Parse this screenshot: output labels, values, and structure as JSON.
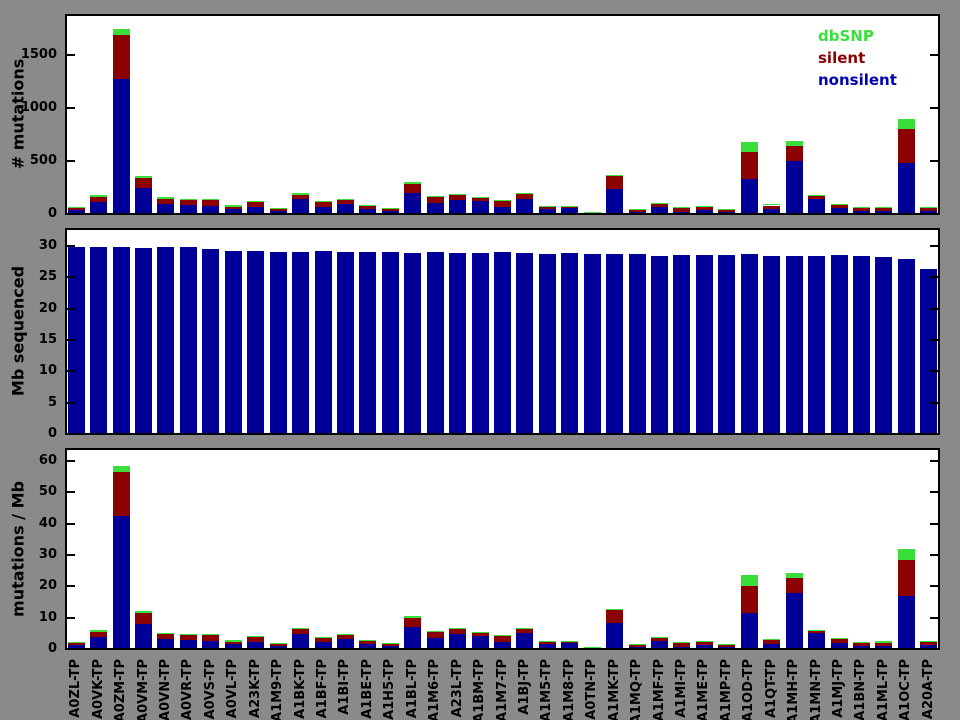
{
  "figure": {
    "background_color": "#8A8A8A",
    "plot_background_color": "#FFFFFF",
    "legend": {
      "position": "top-right-of-first-panel",
      "items": [
        {
          "label": "dbSNP",
          "color": "#3ADF3A"
        },
        {
          "label": "silent",
          "color": "#8B0000"
        },
        {
          "label": "nonsilent",
          "color": "#0000B3"
        }
      ]
    }
  },
  "chart_data": [
    {
      "type": "bar",
      "stacked": true,
      "ylabel": "# mutations",
      "xlabel": "",
      "ylim": [
        0,
        1900
      ],
      "yticks": [
        0,
        500,
        1000,
        1500
      ],
      "grid": false,
      "legend_position": "top-right",
      "categories": [
        "A0ZL-TP",
        "A0VK-TP",
        "A0ZM-TP",
        "A0VM-TP",
        "A0VN-TP",
        "A0VR-TP",
        "A0VS-TP",
        "A0VL-TP",
        "A23K-TP",
        "A1M9-TP",
        "A1BK-TP",
        "A1BF-TP",
        "A1BI-TP",
        "A1BE-TP",
        "A1H5-TP",
        "A1BL-TP",
        "A1M6-TP",
        "A23L-TP",
        "A1BM-TP",
        "A1M7-TP",
        "A1BJ-TP",
        "A1M5-TP",
        "A1M8-TP",
        "A0TN-TP",
        "A1MK-TP",
        "A1MQ-TP",
        "A1MF-TP",
        "A1MI-TP",
        "A1ME-TP",
        "A1MP-TP",
        "A1OD-TP",
        "A1QT-TP",
        "A1MH-TP",
        "A1MN-TP",
        "A1MJ-TP",
        "A1BN-TP",
        "A1ML-TP",
        "A1OC-TP",
        "A20A-TP"
      ],
      "series": [
        {
          "name": "nonsilent",
          "color": "#000099",
          "values": [
            48,
            119,
            1282,
            251,
            103,
            97,
            87,
            54,
            80,
            42,
            151,
            80,
            103,
            58,
            39,
            209,
            112,
            145,
            129,
            80,
            155,
            58,
            64,
            10,
            248,
            32,
            80,
            32,
            48,
            25,
            338,
            58,
            515,
            151,
            64,
            39,
            39,
            489,
            39
          ]
        },
        {
          "name": "silent",
          "color": "#8B0000",
          "values": [
            23,
            48,
            416,
            97,
            48,
            45,
            55,
            26,
            39,
            22,
            42,
            42,
            42,
            29,
            19,
            87,
            55,
            48,
            32,
            55,
            44,
            22,
            16,
            15,
            122,
            22,
            32,
            39,
            32,
            23,
            258,
            32,
            139,
            26,
            39,
            32,
            25,
            323,
            32
          ]
        },
        {
          "name": "dbSNP",
          "color": "#3ADF3A",
          "values": [
            8,
            26,
            62,
            22,
            16,
            13,
            8,
            17,
            16,
            6,
            16,
            6,
            10,
            6,
            6,
            16,
            10,
            10,
            10,
            6,
            10,
            6,
            3,
            3,
            10,
            3,
            6,
            3,
            6,
            7,
            96,
            10,
            48,
            8,
            3,
            4,
            16,
            97,
            3
          ]
        }
      ]
    },
    {
      "type": "bar",
      "stacked": false,
      "ylabel": "Mb sequenced",
      "xlabel": "",
      "ylim": [
        0,
        33
      ],
      "yticks": [
        0,
        5,
        10,
        15,
        20,
        25,
        30
      ],
      "grid": false,
      "categories": [
        "A0ZL-TP",
        "A0VK-TP",
        "A0ZM-TP",
        "A0VM-TP",
        "A0VN-TP",
        "A0VR-TP",
        "A0VS-TP",
        "A0VL-TP",
        "A23K-TP",
        "A1M9-TP",
        "A1BK-TP",
        "A1BF-TP",
        "A1BI-TP",
        "A1BE-TP",
        "A1H5-TP",
        "A1BL-TP",
        "A1M6-TP",
        "A23L-TP",
        "A1BM-TP",
        "A1M7-TP",
        "A1BJ-TP",
        "A1M5-TP",
        "A1M8-TP",
        "A0TN-TP",
        "A1MK-TP",
        "A1MQ-TP",
        "A1MF-TP",
        "A1MI-TP",
        "A1ME-TP",
        "A1MP-TP",
        "A1OD-TP",
        "A1QT-TP",
        "A1MH-TP",
        "A1MN-TP",
        "A1MJ-TP",
        "A1BN-TP",
        "A1ML-TP",
        "A1OC-TP",
        "A20A-TP"
      ],
      "series": [
        {
          "name": "Mb sequenced",
          "color": "#000099",
          "values": [
            29.9,
            29.9,
            29.9,
            29.8,
            29.9,
            29.9,
            29.7,
            29.3,
            29.4,
            29.2,
            29.2,
            29.3,
            29.1,
            29.2,
            29.1,
            29.0,
            29.1,
            29.0,
            29.0,
            29.1,
            29.0,
            28.9,
            29.0,
            28.9,
            28.9,
            28.8,
            28.6,
            28.7,
            28.7,
            28.7,
            28.9,
            28.5,
            28.5,
            28.6,
            28.7,
            28.5,
            28.4,
            28.1,
            26.4
          ]
        }
      ]
    },
    {
      "type": "bar",
      "stacked": true,
      "ylabel": "mutations / Mb",
      "xlabel": "",
      "ylim": [
        0,
        64.5
      ],
      "yticks": [
        0,
        10,
        20,
        30,
        40,
        50,
        60
      ],
      "grid": false,
      "x_tick_labels_shown": true,
      "categories": [
        "A0ZL-TP",
        "A0VK-TP",
        "A0ZM-TP",
        "A0VM-TP",
        "A0VN-TP",
        "A0VR-TP",
        "A0VS-TP",
        "A0VL-TP",
        "A23K-TP",
        "A1M9-TP",
        "A1BK-TP",
        "A1BF-TP",
        "A1BI-TP",
        "A1BE-TP",
        "A1H5-TP",
        "A1BL-TP",
        "A1M6-TP",
        "A23L-TP",
        "A1BM-TP",
        "A1M7-TP",
        "A1BJ-TP",
        "A1M5-TP",
        "A1M8-TP",
        "A0TN-TP",
        "A1MK-TP",
        "A1MQ-TP",
        "A1MF-TP",
        "A1MI-TP",
        "A1ME-TP",
        "A1MP-TP",
        "A1OD-TP",
        "A1QT-TP",
        "A1MH-TP",
        "A1MN-TP",
        "A1MJ-TP",
        "A1BN-TP",
        "A1ML-TP",
        "A1OC-TP",
        "A20A-TP"
      ],
      "series": [
        {
          "name": "nonsilent",
          "color": "#000099",
          "values": [
            1.6,
            4.0,
            42.9,
            8.4,
            3.4,
            3.2,
            2.9,
            1.8,
            2.7,
            1.4,
            5.2,
            2.7,
            3.5,
            2.0,
            1.3,
            7.2,
            3.8,
            5.0,
            4.4,
            2.7,
            5.3,
            2.0,
            2.2,
            0.3,
            8.6,
            1.1,
            2.8,
            1.1,
            1.7,
            0.9,
            11.7,
            2.0,
            18.1,
            5.3,
            2.2,
            1.4,
            1.4,
            17.4,
            1.5
          ]
        },
        {
          "name": "silent",
          "color": "#8B0000",
          "values": [
            0.8,
            1.6,
            13.9,
            3.3,
            1.6,
            1.5,
            1.9,
            0.9,
            1.3,
            0.8,
            1.4,
            1.4,
            1.4,
            1.0,
            0.7,
            3.0,
            1.9,
            1.7,
            1.1,
            1.9,
            1.5,
            0.8,
            0.6,
            0.5,
            4.2,
            0.8,
            1.1,
            1.4,
            1.1,
            0.8,
            8.9,
            1.1,
            4.9,
            0.9,
            1.4,
            1.1,
            0.9,
            11.5,
            1.2
          ]
        },
        {
          "name": "dbSNP",
          "color": "#3ADF3A",
          "values": [
            0.3,
            0.9,
            2.1,
            0.7,
            0.5,
            0.4,
            0.3,
            0.6,
            0.5,
            0.2,
            0.5,
            0.2,
            0.3,
            0.2,
            0.2,
            0.6,
            0.3,
            0.3,
            0.3,
            0.2,
            0.3,
            0.2,
            0.1,
            0.1,
            0.3,
            0.1,
            0.2,
            0.1,
            0.2,
            0.2,
            3.3,
            0.4,
            1.7,
            0.3,
            0.1,
            0.1,
            0.6,
            3.5,
            0.1
          ]
        }
      ]
    }
  ]
}
